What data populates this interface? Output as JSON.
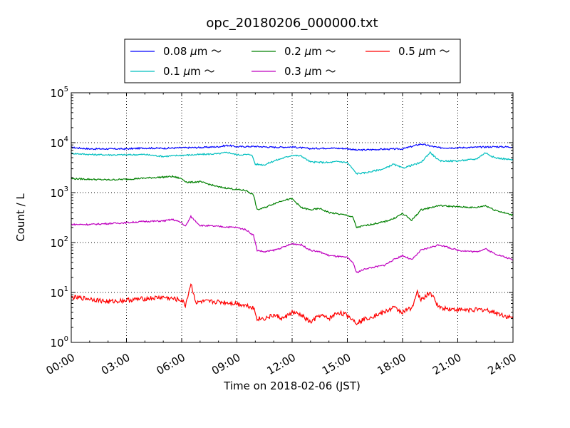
{
  "chart_data": {
    "type": "line",
    "title": "opc_20180206_000000.txt",
    "xlabel": "Time on 2018-02-06 (JST)",
    "ylabel": "Count / L",
    "x_unit": "hours",
    "xlim": [
      0,
      24
    ],
    "x_ticks": [
      {
        "value": 0,
        "label": "00:00"
      },
      {
        "value": 3,
        "label": "03:00"
      },
      {
        "value": 6,
        "label": "06:00"
      },
      {
        "value": 9,
        "label": "09:00"
      },
      {
        "value": 12,
        "label": "12:00"
      },
      {
        "value": 15,
        "label": "15:00"
      },
      {
        "value": 18,
        "label": "18:00"
      },
      {
        "value": 21,
        "label": "21:00"
      },
      {
        "value": 24,
        "label": "24:00"
      }
    ],
    "yscale": "log",
    "ylim": [
      1,
      100000
    ],
    "y_ticks": [
      {
        "value": 1,
        "base": "10",
        "exp": "0"
      },
      {
        "value": 10,
        "base": "10",
        "exp": "1"
      },
      {
        "value": 100,
        "base": "10",
        "exp": "2"
      },
      {
        "value": 1000,
        "base": "10",
        "exp": "3"
      },
      {
        "value": 10000,
        "base": "10",
        "exp": "4"
      },
      {
        "value": 100000,
        "base": "10",
        "exp": "5"
      }
    ],
    "grid": true,
    "legend_position": "top",
    "series": [
      {
        "name": "0.08 μm ～",
        "name_parts": [
          "0.08 ",
          "μ",
          "m ～"
        ],
        "color": "#0000ff",
        "x": [
          0,
          1,
          2,
          3,
          4,
          5,
          6,
          7,
          8,
          8.5,
          9,
          10,
          11,
          12,
          13,
          14,
          15,
          15.5,
          16,
          17,
          18,
          19,
          19.5,
          20,
          21,
          22,
          23,
          24
        ],
        "y": [
          8000,
          7500,
          7500,
          7500,
          7800,
          7700,
          7900,
          8000,
          8300,
          8800,
          8300,
          8400,
          8100,
          8200,
          7600,
          7800,
          7600,
          7100,
          7200,
          7400,
          7500,
          9400,
          8600,
          7900,
          7900,
          8100,
          8300,
          8200
        ]
      },
      {
        "name": "0.1 μm ～",
        "name_parts": [
          "0.1 ",
          "μ",
          "m ～"
        ],
        "color": "#00bfbf",
        "x": [
          0,
          1,
          2,
          3,
          4,
          5,
          6,
          7,
          8,
          8.5,
          9,
          9.8,
          10,
          10.5,
          11,
          12,
          12.5,
          13,
          14,
          14.5,
          15,
          15.5,
          16,
          17,
          17.5,
          18,
          19,
          19.5,
          20,
          21,
          22,
          22.5,
          23,
          24
        ],
        "y": [
          6100,
          5800,
          5700,
          5700,
          5800,
          5300,
          5600,
          5800,
          6000,
          6400,
          5700,
          5800,
          3700,
          3600,
          4300,
          5600,
          5400,
          4100,
          4000,
          4200,
          4000,
          2400,
          2500,
          3000,
          3700,
          3100,
          4000,
          6400,
          4300,
          4300,
          4700,
          6300,
          5000,
          4500
        ]
      },
      {
        "name": "0.2 μm ～",
        "name_parts": [
          "0.2 ",
          "μ",
          "m ～"
        ],
        "color": "#008000",
        "x": [
          0,
          1,
          2,
          3,
          4,
          5,
          5.5,
          6,
          6.3,
          7,
          8,
          9,
          9.5,
          9.9,
          10.1,
          10.5,
          11,
          11.5,
          12,
          12.5,
          13,
          13.5,
          14,
          15,
          15.3,
          15.5,
          16,
          17,
          17.5,
          18,
          18.5,
          19,
          19.5,
          20,
          21,
          22,
          22.5,
          23,
          24
        ],
        "y": [
          1900,
          1850,
          1800,
          1850,
          1950,
          2050,
          2100,
          1900,
          1600,
          1650,
          1300,
          1150,
          1100,
          900,
          450,
          500,
          600,
          700,
          750,
          500,
          450,
          480,
          400,
          350,
          320,
          200,
          220,
          260,
          300,
          380,
          280,
          450,
          500,
          550,
          520,
          500,
          550,
          450,
          350
        ]
      },
      {
        "name": "0.3 μm ～",
        "name_parts": [
          "0.3 ",
          "μ",
          "m ～"
        ],
        "color": "#bf00bf",
        "x": [
          0,
          1,
          2,
          3,
          4,
          5,
          5.5,
          6,
          6.2,
          6.5,
          7,
          8,
          9,
          9.5,
          9.9,
          10.1,
          10.5,
          11,
          11.5,
          12,
          12.5,
          13,
          13.5,
          14,
          15,
          15.3,
          15.5,
          16,
          17,
          17.5,
          18,
          18.5,
          19,
          19.5,
          20,
          21,
          22,
          22.5,
          23,
          24
        ],
        "y": [
          230,
          230,
          240,
          250,
          265,
          270,
          290,
          250,
          210,
          330,
          220,
          210,
          200,
          180,
          140,
          70,
          65,
          70,
          80,
          95,
          90,
          70,
          65,
          55,
          50,
          40,
          25,
          30,
          35,
          45,
          55,
          45,
          70,
          80,
          90,
          70,
          65,
          75,
          60,
          45
        ]
      },
      {
        "name": "0.5 μm ～",
        "name_parts": [
          "0.5 ",
          "μ",
          "m ～"
        ],
        "color": "#ff0000",
        "x": [
          0,
          1,
          2,
          3,
          4,
          5,
          6,
          6.2,
          6.5,
          6.8,
          7,
          8,
          9,
          9.5,
          9.9,
          10.1,
          10.5,
          11,
          11.5,
          12,
          12.5,
          13,
          13.5,
          14,
          14.5,
          15,
          15.5,
          16,
          17,
          17.5,
          18,
          18.5,
          18.8,
          19,
          19.5,
          20,
          21,
          22,
          22.5,
          23,
          24
        ],
        "y": [
          8,
          7.5,
          6.5,
          7,
          7.5,
          8,
          7,
          5.5,
          15,
          6,
          6.5,
          6.5,
          6,
          5.5,
          5,
          3,
          3,
          3.5,
          3,
          4,
          3.5,
          2.5,
          3.5,
          3,
          4,
          3.5,
          2.5,
          3,
          4,
          5,
          4,
          5,
          10,
          7,
          10,
          5,
          4.5,
          4.5,
          4.5,
          4,
          3
        ]
      }
    ]
  }
}
